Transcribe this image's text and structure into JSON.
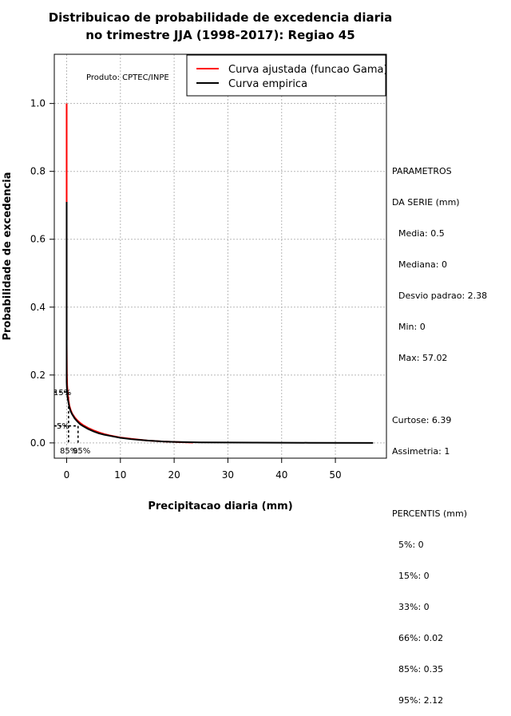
{
  "chart_data": {
    "type": "line",
    "title": "Distribuicao de probabilidade de excedencia diaria",
    "subtitle": "no trimestre JJA (1998-2017): Regiao 45",
    "xlabel": "Precipitacao diaria (mm)",
    "ylabel": "Probabilidade de excedencia",
    "xlim": [
      -2.3,
      59.5
    ],
    "ylim": [
      -0.045,
      1.145
    ],
    "xticks": [
      "0",
      "10",
      "20",
      "30",
      "40",
      "50"
    ],
    "xtick_values": [
      0,
      10,
      20,
      30,
      40,
      50
    ],
    "yticks": [
      "0.0",
      "0.2",
      "0.4",
      "0.6",
      "0.8",
      "1.0"
    ],
    "ytick_values": [
      0,
      0.2,
      0.4,
      0.6,
      0.8,
      1.0
    ],
    "grid": true,
    "legend_position": "top-right",
    "series": [
      {
        "name": "Curva ajustada (funcao Gama)",
        "color": "#ff0000",
        "x": [
          0.0,
          0.0,
          0.05,
          0.1,
          0.2,
          0.35,
          0.5,
          0.75,
          1.0,
          1.5,
          2.0,
          2.5,
          3.0,
          4.0,
          5.0,
          6.0,
          7.0,
          8.0,
          10.0,
          12.0,
          15.0,
          18.0,
          20.0,
          23.5
        ],
        "y": [
          1.0,
          0.3,
          0.2,
          0.17,
          0.145,
          0.125,
          0.11,
          0.097,
          0.087,
          0.075,
          0.066,
          0.059,
          0.053,
          0.044,
          0.037,
          0.031,
          0.026,
          0.022,
          0.016,
          0.012,
          0.007,
          0.004,
          0.003,
          0.001
        ]
      },
      {
        "name": "Curva empirica",
        "color": "#000000",
        "x": [
          0.0,
          0.0,
          0.0,
          0.0,
          0.02,
          0.05,
          0.1,
          0.2,
          0.35,
          0.5,
          0.75,
          1.0,
          1.5,
          2.0,
          2.5,
          3.0,
          4.0,
          5.0,
          6.0,
          7.0,
          8.0,
          10.0,
          12.0,
          15.0,
          18.0,
          20.0,
          25.0,
          35.0,
          45.0,
          57.02
        ],
        "y": [
          0.71,
          0.26,
          0.2,
          0.18,
          0.17,
          0.16,
          0.145,
          0.13,
          0.118,
          0.105,
          0.093,
          0.085,
          0.072,
          0.063,
          0.055,
          0.05,
          0.041,
          0.034,
          0.028,
          0.024,
          0.021,
          0.015,
          0.011,
          0.007,
          0.004,
          0.003,
          0.0015,
          0.0008,
          0.0004,
          0.0
        ]
      }
    ],
    "percentile_lines": [
      {
        "x": 0.35,
        "y": 0.15,
        "label": "85%"
      },
      {
        "x": 2.12,
        "y": 0.05,
        "label": "95%"
      }
    ],
    "annotations": [
      {
        "text": "Produto: CPTEC/INPE"
      },
      {
        "text": "15%",
        "y": 0.15
      },
      {
        "text": "5%",
        "y": 0.05
      }
    ]
  },
  "stats_panel": {
    "header1": "PARAMETROS",
    "header2": "DA SERIE (mm)",
    "media": "Media: 0.5",
    "mediana": "Mediana: 0",
    "desvio": "Desvio padrao: 2.38",
    "min": "Min: 0",
    "max": "Max: 57.02",
    "curtose": "Curtose: 6.39",
    "assimetria": "Assimetria: 1",
    "percentis_header": "PERCENTIS (mm)",
    "p5": "5%: 0",
    "p15": "15%: 0",
    "p33": "33%: 0",
    "p66": "66%: 0.02",
    "p85": "85%: 0.35",
    "p95": "95%: 2.12"
  }
}
